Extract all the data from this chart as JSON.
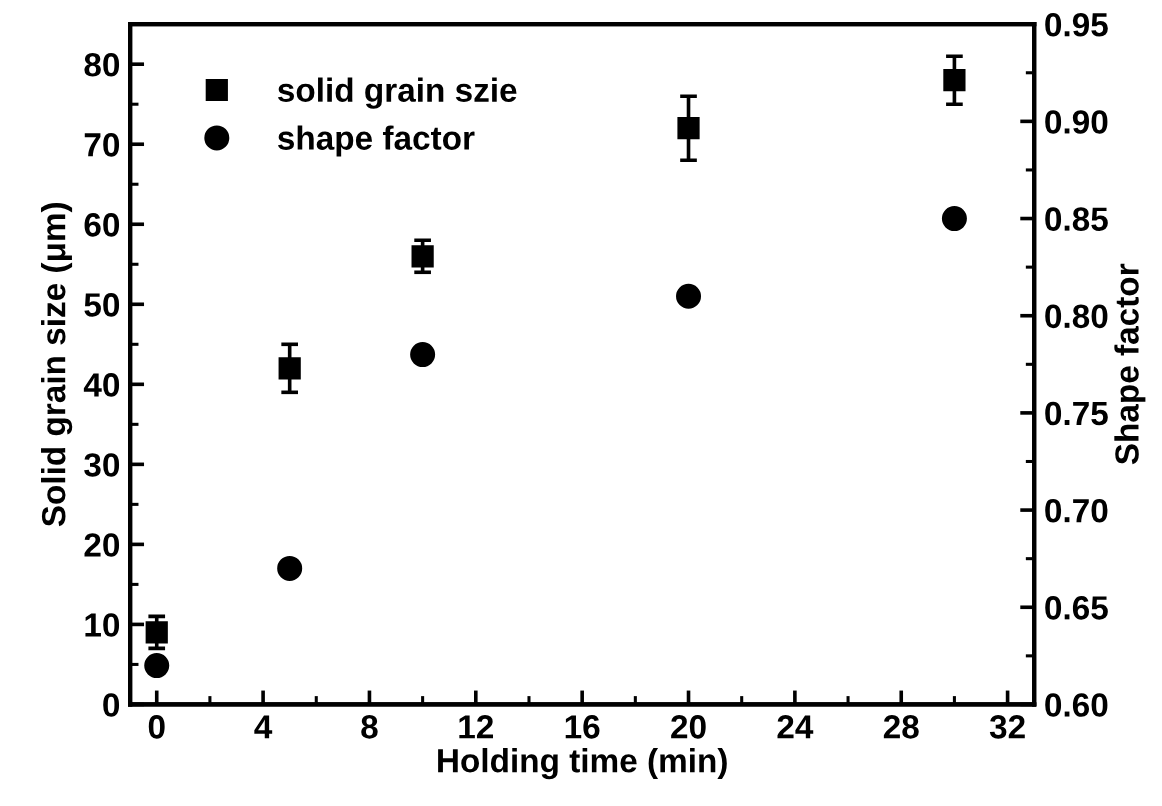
{
  "chart_data": {
    "type": "scatter",
    "xlabel": "Holding time (min)",
    "ylabel": "Solid grain size (μm)",
    "y2label": "Shape factor",
    "x": [
      0,
      5,
      10,
      20,
      30
    ],
    "series": [
      {
        "name": "solid grain szie",
        "color": "#000000",
        "marker": "square",
        "values": [
          9,
          42,
          56,
          72,
          78
        ],
        "errors": [
          2,
          3,
          2,
          4,
          3
        ]
      },
      {
        "name": "shape factor",
        "color": "#000000",
        "marker": "circle",
        "axis": "y2",
        "values": [
          0.62,
          0.67,
          0.78,
          0.81,
          0.85
        ]
      }
    ],
    "xlim": [
      -1,
      33
    ],
    "xticks": [
      0,
      4,
      8,
      12,
      16,
      20,
      24,
      28,
      32
    ],
    "ylim": [
      0,
      85
    ],
    "yticks": [
      0,
      10,
      20,
      30,
      40,
      50,
      60,
      70,
      80
    ],
    "y2lim": [
      0.6,
      0.95
    ],
    "y2ticks": [
      {
        "value": 0.6,
        "label": "0.60"
      },
      {
        "value": 0.65,
        "label": "0.65"
      },
      {
        "value": 0.7,
        "label": "0.70"
      },
      {
        "value": 0.75,
        "label": "0.75"
      },
      {
        "value": 0.8,
        "label": "0.80"
      },
      {
        "value": 0.85,
        "label": "0.85"
      },
      {
        "value": 0.9,
        "label": "0.90"
      },
      {
        "value": 0.95,
        "label": "0.95"
      }
    ],
    "legend": "top left",
    "grid": false
  }
}
